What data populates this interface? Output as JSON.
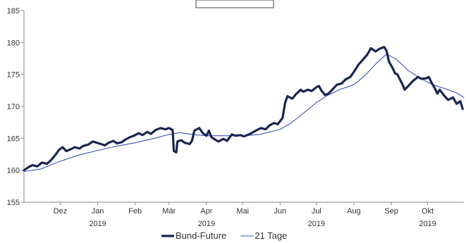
{
  "chart_data": {
    "type": "line",
    "title": "",
    "xlabel": "",
    "ylabel": "",
    "ylim": [
      155,
      185
    ],
    "yticks": [
      155,
      160,
      165,
      170,
      175,
      180,
      185
    ],
    "xrange": [
      "2018-11-01",
      "2019-10-31"
    ],
    "grid": false,
    "legend_position": "bottom",
    "x_ticks": [
      {
        "month": "Dez",
        "year": "",
        "date": "2018-12-01"
      },
      {
        "month": "Jan",
        "year": "2019",
        "date": "2019-01-01"
      },
      {
        "month": "Feb",
        "year": "",
        "date": "2019-02-01"
      },
      {
        "month": "Mär",
        "year": "",
        "date": "2019-03-01"
      },
      {
        "month": "Apr",
        "year": "2019",
        "date": "2019-04-01"
      },
      {
        "month": "Mai",
        "year": "",
        "date": "2019-05-01"
      },
      {
        "month": "Jun",
        "year": "",
        "date": "2019-06-01"
      },
      {
        "month": "Jul",
        "year": "2019",
        "date": "2019-07-01"
      },
      {
        "month": "Aug",
        "year": "",
        "date": "2019-08-01"
      },
      {
        "month": "Sep",
        "year": "",
        "date": "2019-09-01"
      },
      {
        "month": "Okt",
        "year": "2019",
        "date": "2019-10-01"
      }
    ],
    "series": [
      {
        "name": "Bund-Future",
        "color": "#1a2550",
        "line_width": "thick",
        "points": [
          [
            "2018-11-01",
            160.0
          ],
          [
            "2018-11-05",
            160.5
          ],
          [
            "2018-11-08",
            160.8
          ],
          [
            "2018-11-12",
            160.6
          ],
          [
            "2018-11-16",
            161.2
          ],
          [
            "2018-11-20",
            161.0
          ],
          [
            "2018-11-23",
            161.5
          ],
          [
            "2018-11-27",
            162.4
          ],
          [
            "2018-11-30",
            163.2
          ],
          [
            "2018-12-03",
            163.6
          ],
          [
            "2018-12-06",
            163.0
          ],
          [
            "2018-12-10",
            163.3
          ],
          [
            "2018-12-13",
            163.6
          ],
          [
            "2018-12-17",
            163.4
          ],
          [
            "2018-12-20",
            163.8
          ],
          [
            "2018-12-24",
            164.0
          ],
          [
            "2018-12-28",
            164.5
          ],
          [
            "2019-01-02",
            164.2
          ],
          [
            "2019-01-07",
            163.9
          ],
          [
            "2019-01-10",
            164.3
          ],
          [
            "2019-01-14",
            164.6
          ],
          [
            "2019-01-17",
            164.2
          ],
          [
            "2019-01-21",
            164.4
          ],
          [
            "2019-01-24",
            164.8
          ],
          [
            "2019-01-28",
            165.2
          ],
          [
            "2019-01-31",
            165.4
          ],
          [
            "2019-02-04",
            165.8
          ],
          [
            "2019-02-07",
            165.5
          ],
          [
            "2019-02-11",
            166.0
          ],
          [
            "2019-02-14",
            165.7
          ],
          [
            "2019-02-18",
            166.3
          ],
          [
            "2019-02-22",
            166.6
          ],
          [
            "2019-02-26",
            166.4
          ],
          [
            "2019-03-01",
            166.6
          ],
          [
            "2019-03-04",
            166.3
          ],
          [
            "2019-03-05",
            163.0
          ],
          [
            "2019-03-07",
            162.8
          ],
          [
            "2019-03-08",
            164.5
          ],
          [
            "2019-03-11",
            164.7
          ],
          [
            "2019-03-14",
            164.3
          ],
          [
            "2019-03-18",
            164.1
          ],
          [
            "2019-03-20",
            164.6
          ],
          [
            "2019-03-22",
            166.2
          ],
          [
            "2019-03-26",
            166.6
          ],
          [
            "2019-03-29",
            165.8
          ],
          [
            "2019-04-01",
            165.4
          ],
          [
            "2019-04-03",
            166.2
          ],
          [
            "2019-04-05",
            165.2
          ],
          [
            "2019-04-08",
            164.8
          ],
          [
            "2019-04-11",
            164.5
          ],
          [
            "2019-04-15",
            164.9
          ],
          [
            "2019-04-18",
            164.6
          ],
          [
            "2019-04-22",
            165.6
          ],
          [
            "2019-04-25",
            165.4
          ],
          [
            "2019-04-29",
            165.5
          ],
          [
            "2019-05-02",
            165.3
          ],
          [
            "2019-05-06",
            165.6
          ],
          [
            "2019-05-09",
            165.9
          ],
          [
            "2019-05-13",
            166.3
          ],
          [
            "2019-05-16",
            166.6
          ],
          [
            "2019-05-20",
            166.4
          ],
          [
            "2019-05-23",
            167.0
          ],
          [
            "2019-05-27",
            167.4
          ],
          [
            "2019-05-30",
            167.2
          ],
          [
            "2019-06-03",
            168.2
          ],
          [
            "2019-06-05",
            170.5
          ],
          [
            "2019-06-07",
            171.6
          ],
          [
            "2019-06-11",
            171.2
          ],
          [
            "2019-06-14",
            171.9
          ],
          [
            "2019-06-18",
            172.6
          ],
          [
            "2019-06-20",
            172.3
          ],
          [
            "2019-06-24",
            172.6
          ],
          [
            "2019-06-27",
            172.4
          ],
          [
            "2019-07-01",
            173.0
          ],
          [
            "2019-07-03",
            173.2
          ],
          [
            "2019-07-05",
            172.5
          ],
          [
            "2019-07-08",
            171.8
          ],
          [
            "2019-07-11",
            172.0
          ],
          [
            "2019-07-15",
            172.8
          ],
          [
            "2019-07-18",
            173.4
          ],
          [
            "2019-07-22",
            173.6
          ],
          [
            "2019-07-25",
            174.2
          ],
          [
            "2019-07-29",
            174.6
          ],
          [
            "2019-08-01",
            175.4
          ],
          [
            "2019-08-05",
            176.6
          ],
          [
            "2019-08-08",
            177.2
          ],
          [
            "2019-08-12",
            178.1
          ],
          [
            "2019-08-15",
            179.1
          ],
          [
            "2019-08-19",
            178.6
          ],
          [
            "2019-08-22",
            179.0
          ],
          [
            "2019-08-26",
            179.3
          ],
          [
            "2019-08-28",
            178.7
          ],
          [
            "2019-08-30",
            177.0
          ],
          [
            "2019-09-02",
            176.0
          ],
          [
            "2019-09-04",
            175.2
          ],
          [
            "2019-09-06",
            175.0
          ],
          [
            "2019-09-10",
            173.5
          ],
          [
            "2019-09-12",
            172.6
          ],
          [
            "2019-09-16",
            173.4
          ],
          [
            "2019-09-19",
            174.0
          ],
          [
            "2019-09-23",
            174.6
          ],
          [
            "2019-09-26",
            174.3
          ],
          [
            "2019-09-30",
            174.4
          ],
          [
            "2019-10-02",
            174.6
          ],
          [
            "2019-10-04",
            173.8
          ],
          [
            "2019-10-07",
            172.8
          ],
          [
            "2019-10-09",
            172.0
          ],
          [
            "2019-10-11",
            172.6
          ],
          [
            "2019-10-15",
            171.6
          ],
          [
            "2019-10-18",
            171.0
          ],
          [
            "2019-10-22",
            171.4
          ],
          [
            "2019-10-25",
            170.4
          ],
          [
            "2019-10-28",
            170.8
          ],
          [
            "2019-10-30",
            169.6
          ]
        ]
      },
      {
        "name": "21 Tage",
        "color": "#3d4fc4",
        "line_width": "thin",
        "points": [
          [
            "2018-11-01",
            159.8
          ],
          [
            "2018-11-15",
            160.2
          ],
          [
            "2018-12-01",
            161.4
          ],
          [
            "2018-12-15",
            162.3
          ],
          [
            "2019-01-01",
            163.1
          ],
          [
            "2019-01-15",
            163.7
          ],
          [
            "2019-02-01",
            164.3
          ],
          [
            "2019-02-15",
            164.9
          ],
          [
            "2019-03-01",
            165.6
          ],
          [
            "2019-03-10",
            165.9
          ],
          [
            "2019-03-20",
            165.6
          ],
          [
            "2019-04-01",
            165.4
          ],
          [
            "2019-04-15",
            165.4
          ],
          [
            "2019-05-01",
            165.4
          ],
          [
            "2019-05-15",
            165.6
          ],
          [
            "2019-06-01",
            166.4
          ],
          [
            "2019-06-10",
            167.4
          ],
          [
            "2019-06-20",
            168.9
          ],
          [
            "2019-07-01",
            170.6
          ],
          [
            "2019-07-10",
            171.7
          ],
          [
            "2019-07-20",
            172.6
          ],
          [
            "2019-08-01",
            173.4
          ],
          [
            "2019-08-10",
            174.8
          ],
          [
            "2019-08-20",
            176.8
          ],
          [
            "2019-08-28",
            178.2
          ],
          [
            "2019-09-05",
            177.4
          ],
          [
            "2019-09-15",
            175.6
          ],
          [
            "2019-09-25",
            174.4
          ],
          [
            "2019-10-05",
            173.4
          ],
          [
            "2019-10-15",
            172.8
          ],
          [
            "2019-10-25",
            172.1
          ],
          [
            "2019-10-31",
            171.4
          ]
        ]
      }
    ]
  }
}
